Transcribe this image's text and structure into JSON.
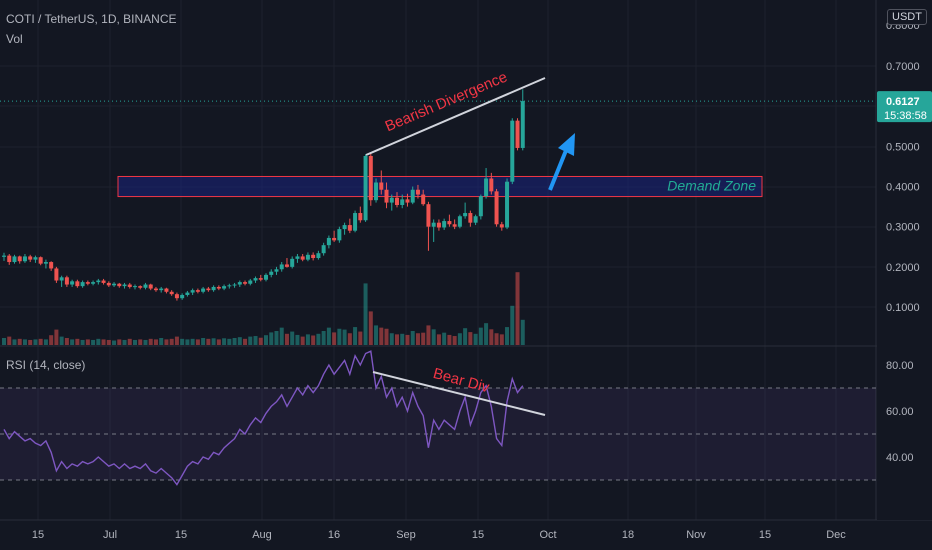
{
  "header": {
    "symbol": "COTI / TetherUS, 1D, BINANCE",
    "volume_label": "Vol",
    "currency_badge": "USDT"
  },
  "colors": {
    "background": "#131722",
    "up": "#26a69a",
    "down": "#ef5350",
    "grid": "#1e222d",
    "axis_text": "#b2b5be",
    "rsi_line": "#7e57c2",
    "annotation_red": "#f23645",
    "annotation_teal": "#22ab94",
    "zone_fill": "#1a237e",
    "arrow": "#2196f3"
  },
  "price_scale": {
    "ticks": [
      "0.1000",
      "0.2000",
      "0.3000",
      "0.4000",
      "0.5000",
      "0.7000"
    ],
    "top_partial_tick": "0.8000",
    "last_price": "0.6127",
    "countdown": "15:38:58"
  },
  "rsi_panel": {
    "title": "RSI (14, close)",
    "ticks": [
      "40.00",
      "60.00",
      "80.00"
    ]
  },
  "time_axis": {
    "labels": [
      "15",
      "Jul",
      "15",
      "Aug",
      "16",
      "Sep",
      "15",
      "Oct",
      "18",
      "Nov",
      "15",
      "Dec"
    ]
  },
  "annotations": {
    "bearish_divergence": "Bearish Divergence",
    "demand_zone": "Demand Zone",
    "bear_div": "Bear Div"
  },
  "chart_data": [
    {
      "type": "candlestick",
      "title": "COTI / TetherUS, 1D, BINANCE",
      "ylim": [
        0.0,
        0.8
      ],
      "last_price": 0.6127,
      "demand_zone": [
        0.375,
        0.425
      ],
      "candles": [
        [
          0.225,
          0.235,
          0.215,
          0.228
        ],
        [
          0.228,
          0.232,
          0.205,
          0.212
        ],
        [
          0.212,
          0.23,
          0.208,
          0.226
        ],
        [
          0.226,
          0.228,
          0.208,
          0.214
        ],
        [
          0.214,
          0.232,
          0.21,
          0.226
        ],
        [
          0.226,
          0.23,
          0.212,
          0.218
        ],
        [
          0.218,
          0.228,
          0.21,
          0.224
        ],
        [
          0.224,
          0.226,
          0.204,
          0.208
        ],
        [
          0.208,
          0.218,
          0.196,
          0.212
        ],
        [
          0.212,
          0.214,
          0.19,
          0.196
        ],
        [
          0.196,
          0.2,
          0.16,
          0.166
        ],
        [
          0.166,
          0.178,
          0.15,
          0.174
        ],
        [
          0.174,
          0.178,
          0.15,
          0.156
        ],
        [
          0.156,
          0.168,
          0.15,
          0.164
        ],
        [
          0.164,
          0.168,
          0.148,
          0.152
        ],
        [
          0.152,
          0.166,
          0.148,
          0.162
        ],
        [
          0.162,
          0.166,
          0.154,
          0.158
        ],
        [
          0.158,
          0.166,
          0.154,
          0.162
        ],
        [
          0.162,
          0.17,
          0.156,
          0.166
        ],
        [
          0.166,
          0.17,
          0.156,
          0.16
        ],
        [
          0.16,
          0.164,
          0.15,
          0.154
        ],
        [
          0.154,
          0.162,
          0.15,
          0.158
        ],
        [
          0.158,
          0.16,
          0.148,
          0.152
        ],
        [
          0.152,
          0.16,
          0.146,
          0.156
        ],
        [
          0.156,
          0.16,
          0.146,
          0.15
        ],
        [
          0.15,
          0.156,
          0.144,
          0.152
        ],
        [
          0.152,
          0.154,
          0.144,
          0.148
        ],
        [
          0.148,
          0.16,
          0.144,
          0.156
        ],
        [
          0.156,
          0.158,
          0.142,
          0.146
        ],
        [
          0.146,
          0.15,
          0.138,
          0.142
        ],
        [
          0.142,
          0.15,
          0.136,
          0.146
        ],
        [
          0.146,
          0.148,
          0.134,
          0.138
        ],
        [
          0.138,
          0.142,
          0.128,
          0.132
        ],
        [
          0.132,
          0.136,
          0.116,
          0.122
        ],
        [
          0.122,
          0.134,
          0.118,
          0.13
        ],
        [
          0.13,
          0.14,
          0.126,
          0.136
        ],
        [
          0.136,
          0.146,
          0.13,
          0.142
        ],
        [
          0.142,
          0.146,
          0.134,
          0.138
        ],
        [
          0.138,
          0.15,
          0.134,
          0.146
        ],
        [
          0.146,
          0.15,
          0.138,
          0.142
        ],
        [
          0.142,
          0.154,
          0.138,
          0.15
        ],
        [
          0.15,
          0.154,
          0.142,
          0.146
        ],
        [
          0.146,
          0.156,
          0.142,
          0.152
        ],
        [
          0.152,
          0.158,
          0.146,
          0.154
        ],
        [
          0.154,
          0.16,
          0.148,
          0.156
        ],
        [
          0.156,
          0.166,
          0.15,
          0.162
        ],
        [
          0.162,
          0.166,
          0.154,
          0.158
        ],
        [
          0.158,
          0.17,
          0.154,
          0.166
        ],
        [
          0.166,
          0.176,
          0.16,
          0.172
        ],
        [
          0.172,
          0.18,
          0.164,
          0.168
        ],
        [
          0.168,
          0.184,
          0.164,
          0.18
        ],
        [
          0.18,
          0.194,
          0.174,
          0.188
        ],
        [
          0.188,
          0.2,
          0.18,
          0.194
        ],
        [
          0.194,
          0.212,
          0.188,
          0.206
        ],
        [
          0.206,
          0.222,
          0.198,
          0.2
        ],
        [
          0.2,
          0.226,
          0.196,
          0.22
        ],
        [
          0.22,
          0.232,
          0.21,
          0.226
        ],
        [
          0.226,
          0.232,
          0.214,
          0.218
        ],
        [
          0.218,
          0.236,
          0.214,
          0.23
        ],
        [
          0.23,
          0.236,
          0.216,
          0.222
        ],
        [
          0.222,
          0.24,
          0.218,
          0.234
        ],
        [
          0.234,
          0.26,
          0.228,
          0.254
        ],
        [
          0.254,
          0.278,
          0.246,
          0.272
        ],
        [
          0.272,
          0.29,
          0.262,
          0.266
        ],
        [
          0.266,
          0.3,
          0.26,
          0.294
        ],
        [
          0.294,
          0.31,
          0.28,
          0.304
        ],
        [
          0.304,
          0.32,
          0.284,
          0.29
        ],
        [
          0.29,
          0.34,
          0.286,
          0.334
        ],
        [
          0.334,
          0.35,
          0.31,
          0.316
        ],
        [
          0.316,
          0.48,
          0.312,
          0.476
        ],
        [
          0.476,
          0.486,
          0.352,
          0.366
        ],
        [
          0.366,
          0.42,
          0.36,
          0.41
        ],
        [
          0.41,
          0.44,
          0.38,
          0.392
        ],
        [
          0.392,
          0.41,
          0.346,
          0.36
        ],
        [
          0.36,
          0.38,
          0.34,
          0.372
        ],
        [
          0.372,
          0.386,
          0.348,
          0.354
        ],
        [
          0.354,
          0.38,
          0.346,
          0.368
        ],
        [
          0.368,
          0.382,
          0.35,
          0.36
        ],
        [
          0.36,
          0.4,
          0.356,
          0.392
        ],
        [
          0.392,
          0.404,
          0.37,
          0.38
        ],
        [
          0.38,
          0.392,
          0.352,
          0.356
        ],
        [
          0.356,
          0.362,
          0.24,
          0.3
        ],
        [
          0.3,
          0.318,
          0.262,
          0.31
        ],
        [
          0.31,
          0.318,
          0.29,
          0.298
        ],
        [
          0.298,
          0.32,
          0.292,
          0.314
        ],
        [
          0.314,
          0.33,
          0.3,
          0.306
        ],
        [
          0.306,
          0.318,
          0.294,
          0.3
        ],
        [
          0.3,
          0.33,
          0.296,
          0.326
        ],
        [
          0.326,
          0.36,
          0.32,
          0.334
        ],
        [
          0.334,
          0.34,
          0.3,
          0.31
        ],
        [
          0.31,
          0.33,
          0.304,
          0.326
        ],
        [
          0.326,
          0.38,
          0.318,
          0.376
        ],
        [
          0.376,
          0.446,
          0.37,
          0.42
        ],
        [
          0.42,
          0.434,
          0.38,
          0.388
        ],
        [
          0.388,
          0.394,
          0.3,
          0.306
        ],
        [
          0.306,
          0.312,
          0.29,
          0.298
        ],
        [
          0.298,
          0.42,
          0.294,
          0.412
        ],
        [
          0.412,
          0.57,
          0.406,
          0.564
        ],
        [
          0.564,
          0.57,
          0.49,
          0.496
        ],
        [
          0.496,
          0.642,
          0.49,
          0.6127
        ]
      ],
      "volume": [
        0.25,
        0.3,
        0.2,
        0.22,
        0.2,
        0.18,
        0.2,
        0.22,
        0.2,
        0.35,
        0.55,
        0.3,
        0.25,
        0.2,
        0.22,
        0.18,
        0.2,
        0.18,
        0.22,
        0.2,
        0.18,
        0.16,
        0.2,
        0.18,
        0.22,
        0.18,
        0.2,
        0.18,
        0.22,
        0.2,
        0.25,
        0.2,
        0.22,
        0.3,
        0.22,
        0.2,
        0.22,
        0.2,
        0.25,
        0.22,
        0.24,
        0.2,
        0.24,
        0.22,
        0.25,
        0.28,
        0.22,
        0.3,
        0.32,
        0.26,
        0.35,
        0.45,
        0.5,
        0.62,
        0.4,
        0.48,
        0.36,
        0.3,
        0.38,
        0.34,
        0.4,
        0.5,
        0.62,
        0.45,
        0.58,
        0.55,
        0.42,
        0.64,
        0.48,
        2.2,
        1.2,
        0.7,
        0.62,
        0.58,
        0.42,
        0.38,
        0.4,
        0.36,
        0.5,
        0.42,
        0.44,
        0.7,
        0.56,
        0.38,
        0.44,
        0.36,
        0.32,
        0.42,
        0.6,
        0.46,
        0.4,
        0.62,
        0.78,
        0.56,
        0.42,
        0.38,
        0.64,
        1.4,
        2.6,
        0.9
      ]
    },
    {
      "type": "line",
      "title": "RSI (14, close)",
      "ylim": [
        25,
        92
      ],
      "grid_lines": [
        30,
        50,
        70
      ],
      "series": [
        {
          "values": [
            52,
            48,
            51,
            49,
            47,
            48,
            46,
            45,
            47,
            42,
            34,
            38,
            35,
            37,
            36,
            38,
            37,
            38,
            40,
            38,
            36,
            37,
            35,
            37,
            35,
            36,
            35,
            37,
            34,
            33,
            35,
            33,
            31,
            28,
            32,
            36,
            38,
            37,
            40,
            39,
            42,
            41,
            44,
            46,
            48,
            52,
            50,
            54,
            57,
            55,
            59,
            62,
            64,
            67,
            62,
            66,
            70,
            67,
            71,
            68,
            71,
            76,
            80,
            76,
            79,
            82,
            76,
            84,
            80,
            85,
            86,
            70,
            75,
            66,
            70,
            62,
            66,
            60,
            68,
            62,
            58,
            44,
            56,
            52,
            56,
            54,
            52,
            60,
            66,
            54,
            60,
            68,
            71,
            62,
            48,
            45,
            64,
            74,
            68,
            71
          ]
        }
      ]
    }
  ]
}
